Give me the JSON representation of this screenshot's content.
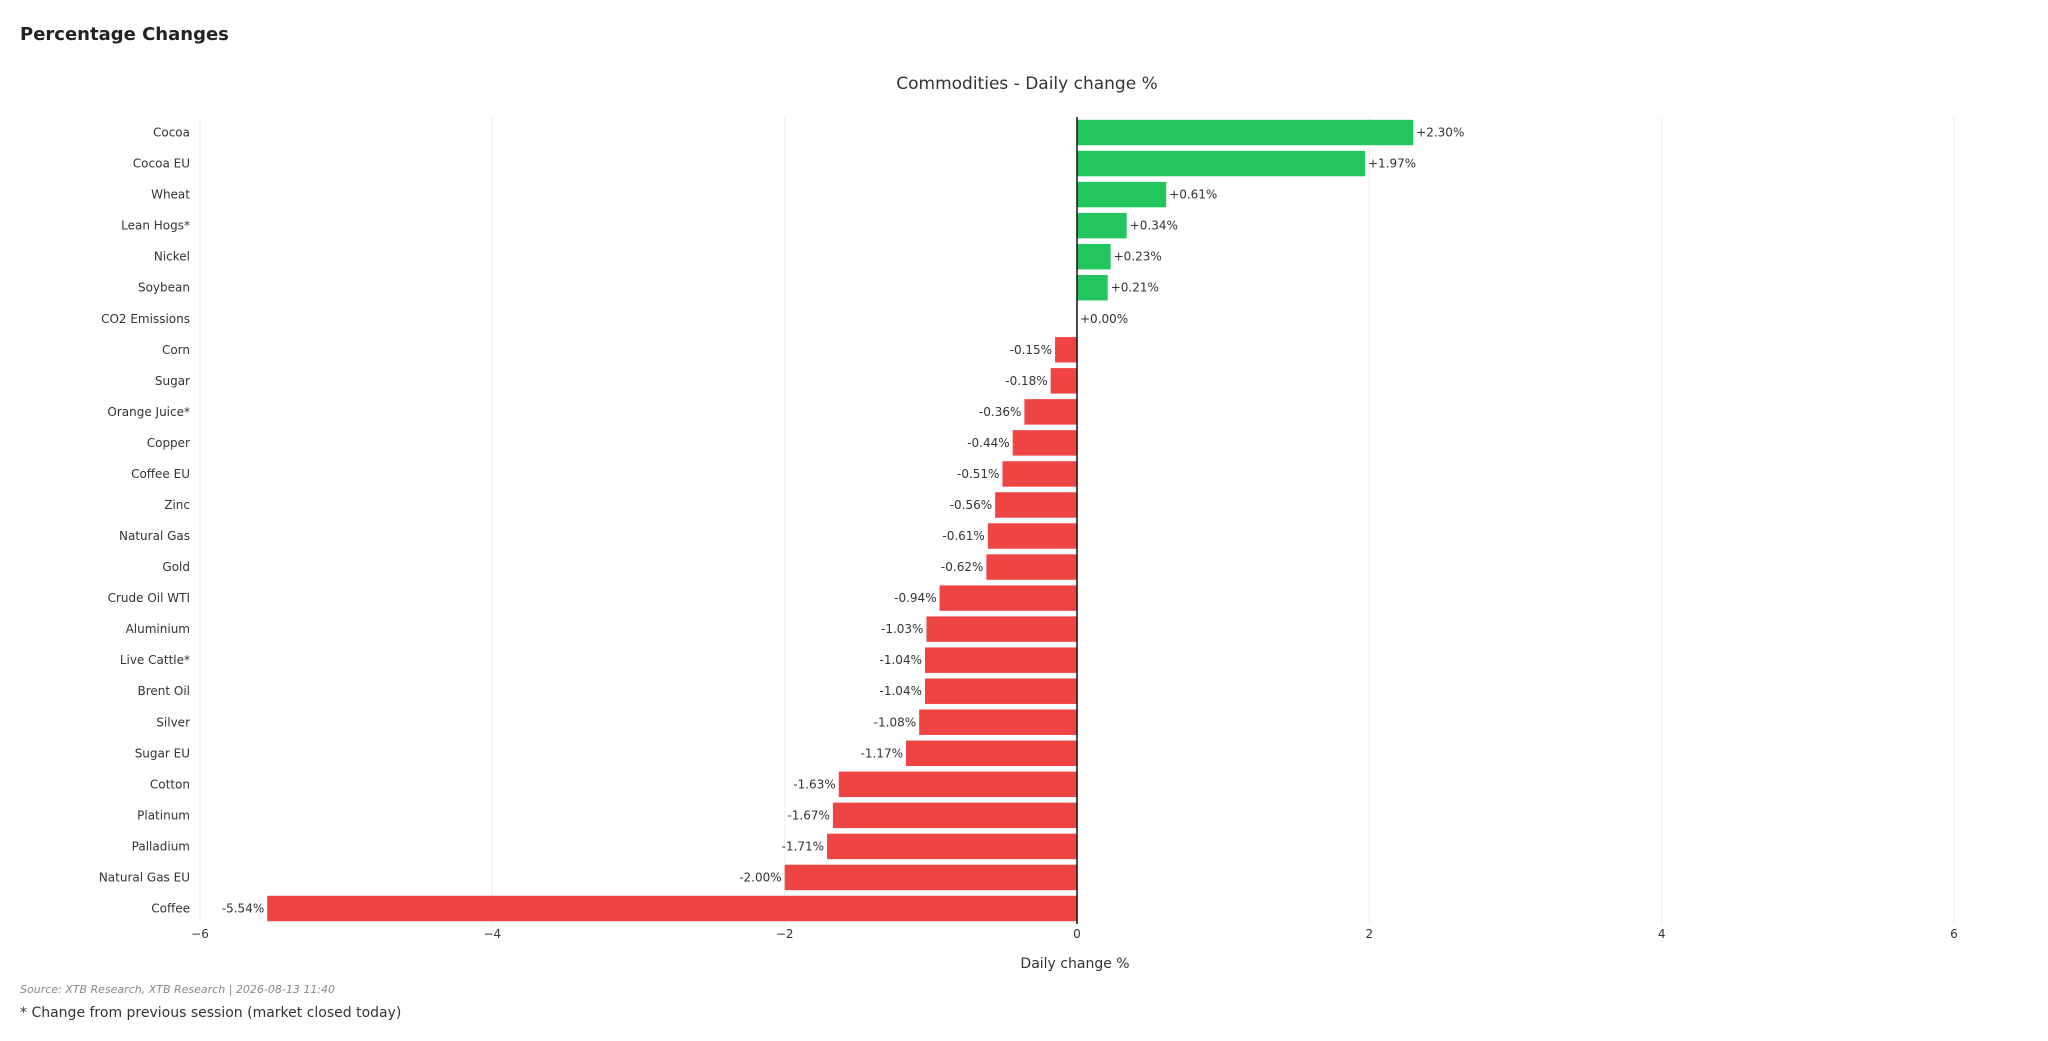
{
  "page": {
    "header": "Percentage Changes",
    "source": "Source: XTB Research, XTB Research | 2026-08-13 11:40",
    "note": "* Change from previous session (market closed today)"
  },
  "colors": {
    "positive": "#22c55e",
    "negative": "#ef4444",
    "zero_line": "#111111",
    "grid": "#eeeeee"
  },
  "chart_data": {
    "type": "bar",
    "orientation": "horizontal",
    "title": "Commodities - Daily change %",
    "xlabel": "Daily change %",
    "ylabel": "",
    "xlim": [
      -6,
      6
    ],
    "xticks": [
      -6,
      -4,
      -2,
      0,
      2,
      4,
      6
    ],
    "xtick_labels": [
      "−6",
      "−4",
      "−2",
      "0",
      "2",
      "4",
      "6"
    ],
    "grid": "vertical",
    "categories": [
      "Cocoa",
      "Cocoa EU",
      "Wheat",
      "Lean Hogs*",
      "Nickel",
      "Soybean",
      "CO2 Emissions",
      "Corn",
      "Sugar",
      "Orange Juice*",
      "Copper",
      "Coffee EU",
      "Zinc",
      "Natural Gas",
      "Gold",
      "Crude Oil WTI",
      "Aluminium",
      "Live Cattle*",
      "Brent Oil",
      "Silver",
      "Sugar EU",
      "Cotton",
      "Platinum",
      "Palladium",
      "Natural Gas EU",
      "Coffee"
    ],
    "values": [
      2.3,
      1.97,
      0.61,
      0.34,
      0.23,
      0.21,
      0.0,
      -0.15,
      -0.18,
      -0.36,
      -0.44,
      -0.51,
      -0.56,
      -0.61,
      -0.62,
      -0.94,
      -1.03,
      -1.04,
      -1.04,
      -1.08,
      -1.17,
      -1.63,
      -1.67,
      -1.71,
      -2.0,
      -5.54
    ],
    "labels": [
      "+2.30%",
      "+1.97%",
      "+0.61%",
      "+0.34%",
      "+0.23%",
      "+0.21%",
      "+0.00%",
      "-0.15%",
      "-0.18%",
      "-0.36%",
      "-0.44%",
      "-0.51%",
      "-0.56%",
      "-0.61%",
      "-0.62%",
      "-0.94%",
      "-1.03%",
      "-1.04%",
      "-1.04%",
      "-1.08%",
      "-1.17%",
      "-1.63%",
      "-1.67%",
      "-1.71%",
      "-2.00%",
      "-5.54%"
    ]
  }
}
